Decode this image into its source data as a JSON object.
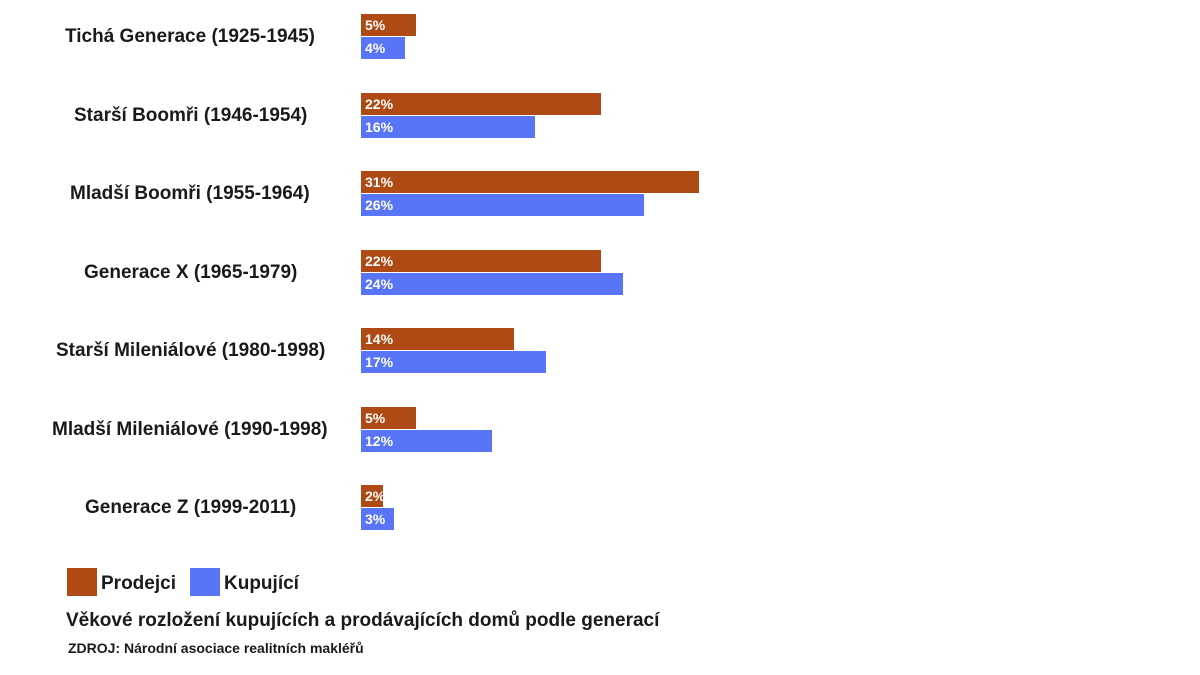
{
  "chart_data": {
    "type": "bar",
    "orientation": "horizontal",
    "categories": [
      "Tichá Generace (1925-1945)",
      "Starší Boomři (1946-1954)",
      "Mladší Boomři (1955-1964)",
      "Generace X (1965-1979)",
      "Starší Mileniálové (1980-1998)",
      "Mladší Mileniálové (1990-1998)",
      "Generace Z (1999-2011)"
    ],
    "series": [
      {
        "name": "Prodejci",
        "color": "#b04a14",
        "values": [
          5,
          22,
          31,
          22,
          14,
          5,
          2
        ],
        "labels": [
          "5%",
          "22%",
          "31%",
          "22%",
          "14%",
          "5%",
          "2%"
        ]
      },
      {
        "name": "Kupující",
        "color": "#5874f7",
        "values": [
          4,
          16,
          26,
          24,
          17,
          12,
          3
        ],
        "labels": [
          "4%",
          "16%",
          "26%",
          "24%",
          "17%",
          "12%",
          "3%"
        ]
      }
    ],
    "title": "Věkové rozložení kupujících a prodávajících domů podle generací",
    "source": "ZDROJ: Národní asociace realitních makléřů",
    "xlabel": "",
    "ylabel": "",
    "grid": false,
    "legend_position": "bottom-left"
  }
}
